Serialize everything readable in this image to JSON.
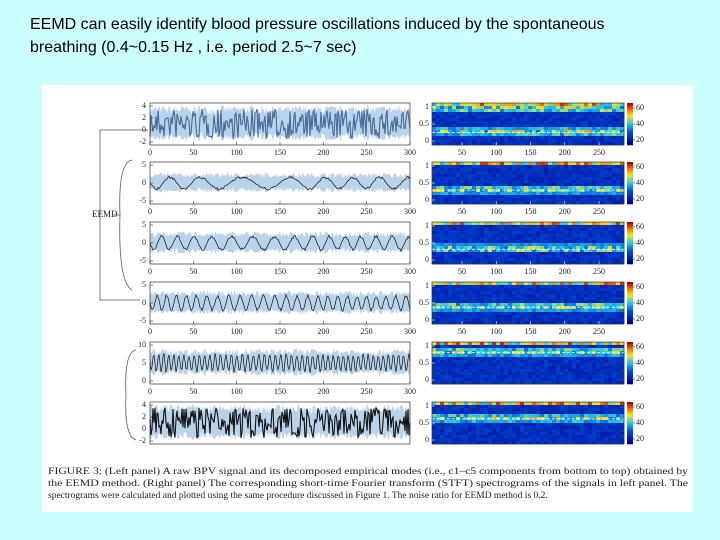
{
  "title_lines": [
    "EEMD can easily identify blood pressure oscillations induced by the spontaneous",
    "breathing (0.4~0.15 Hz , i.e. period 2.5~7 sec)"
  ],
  "figure": {
    "side_label": "EEMD",
    "left_panels": [
      {
        "yticks": [
          4,
          2,
          0,
          -2
        ],
        "xticks": [
          0,
          50,
          100,
          150,
          200,
          250,
          300
        ]
      },
      {
        "yticks": [
          5,
          0,
          -5
        ],
        "xticks": [
          0,
          50,
          100,
          150,
          200,
          250,
          300
        ]
      },
      {
        "yticks": [
          5,
          0,
          -5
        ],
        "xticks": [
          0,
          50,
          100,
          150,
          200,
          250,
          300
        ]
      },
      {
        "yticks": [
          5,
          0,
          -5
        ],
        "xticks": [
          0,
          50,
          100,
          150,
          200,
          250,
          300
        ]
      },
      {
        "yticks": [
          10,
          5,
          0
        ],
        "xticks": [
          0,
          50,
          100,
          150,
          200,
          250,
          300
        ]
      },
      {
        "yticks": [
          4,
          2,
          0,
          -2
        ]
      }
    ],
    "right_panels": [
      {
        "yticks": [
          1,
          0.5,
          0
        ],
        "xticks": [
          50,
          100,
          150,
          200,
          250
        ],
        "colorbar_ticks": [
          60,
          40,
          20
        ]
      },
      {
        "yticks": [
          1,
          0.5,
          0
        ],
        "xticks": [
          50,
          100,
          150,
          200,
          250
        ],
        "colorbar_ticks": [
          60,
          40,
          20
        ]
      },
      {
        "yticks": [
          1,
          0.5,
          0
        ],
        "xticks": [
          50,
          100,
          150,
          200,
          250
        ],
        "colorbar_ticks": [
          60,
          40,
          20
        ]
      },
      {
        "yticks": [
          1,
          0.5,
          0
        ],
        "xticks": [
          50,
          100,
          150,
          200,
          250
        ],
        "colorbar_ticks": [
          60,
          40,
          20
        ]
      },
      {
        "yticks": [
          1,
          0.5,
          0
        ],
        "colorbar_ticks": [
          60,
          40,
          20
        ]
      },
      {
        "yticks": [
          1,
          0.5,
          0
        ],
        "colorbar_ticks": [
          60,
          40,
          20
        ]
      }
    ]
  },
  "caption_lines": [
    "FIGURE 3: (Left panel) A raw BPV signal and its decomposed empirical modes (i.e., c1–c5 components from bottom to top) obtained by",
    "the EEMD method. (Right panel) The corresponding short-time Fourier transform (STFT) spectrograms of the signals in left panel. The",
    "spectrograms were calculated and plotted using the same procedure discussed in Figure 1. The noise ratio for EEMD method is 0.2."
  ]
}
